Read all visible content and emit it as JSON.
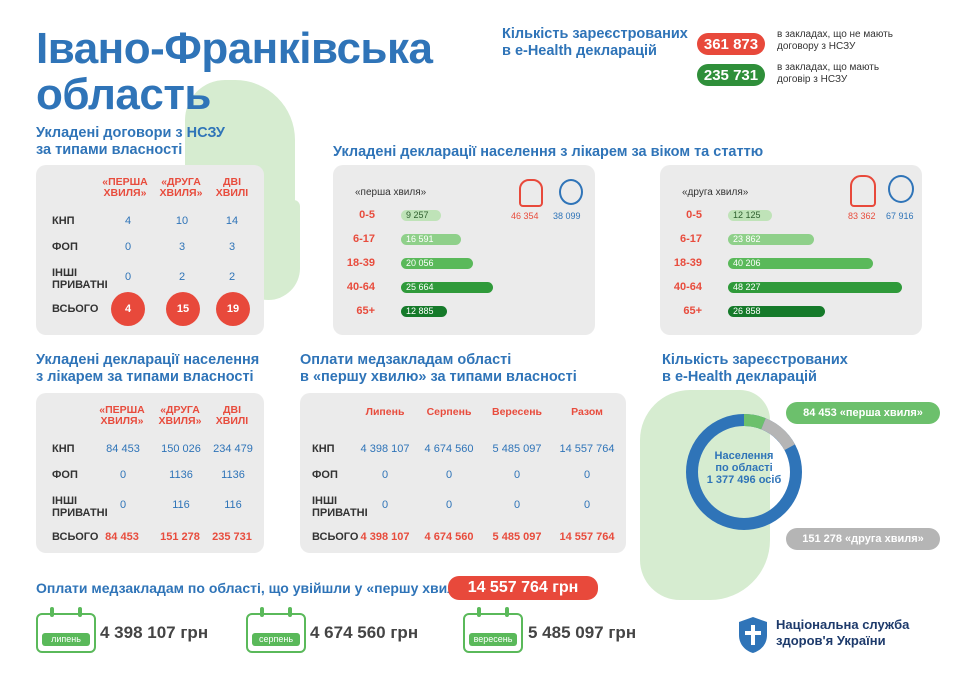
{
  "region_title": [
    "Івано-Франківська",
    "область"
  ],
  "registered_top": {
    "heading": [
      "Кількість зареєстрованих",
      "в e-Health декларацій"
    ],
    "no_contract": {
      "value": "361 873",
      "label": [
        "в закладах, що не мають",
        "договору з НСЗУ"
      ]
    },
    "with_contract": {
      "value": "235 731",
      "label": [
        "в закладах, що мають",
        "договір з НСЗУ"
      ]
    }
  },
  "contracts": {
    "heading": [
      "Укладені договори з НСЗУ",
      "за типами власності"
    ],
    "cols": [
      "«ПЕРША ХВИЛЯ»",
      "«ДРУГА ХВИЛЯ»",
      "ДВІ ХВИЛІ"
    ],
    "rows": [
      {
        "label": "КНП",
        "v": [
          "4",
          "10",
          "14"
        ]
      },
      {
        "label": "ФОП",
        "v": [
          "0",
          "3",
          "3"
        ]
      },
      {
        "label": "ІНШІ ПРИВАТНІ",
        "v": [
          "0",
          "2",
          "2"
        ]
      }
    ],
    "total": {
      "label": "ВСЬОГО",
      "v": [
        "4",
        "15",
        "19"
      ]
    }
  },
  "age": {
    "heading": "Укладені декларації населення з лікарем за віком та статтю",
    "wave1": {
      "label": "«перша хвиля»",
      "female": "46 354",
      "male": "38 099",
      "rows": [
        {
          "age": "0-5",
          "value": "9 257",
          "num": 9257
        },
        {
          "age": "6-17",
          "value": "16 591",
          "num": 16591
        },
        {
          "age": "18-39",
          "value": "20 056",
          "num": 20056
        },
        {
          "age": "40-64",
          "value": "25 664",
          "num": 25664
        },
        {
          "age": "65+",
          "value": "12 885",
          "num": 12885
        }
      ]
    },
    "wave2": {
      "label": "«друга хвиля»",
      "female": "83 362",
      "male": "67 916",
      "rows": [
        {
          "age": "0-5",
          "value": "12 125",
          "num": 12125
        },
        {
          "age": "6-17",
          "value": "23 862",
          "num": 23862
        },
        {
          "age": "18-39",
          "value": "40 206",
          "num": 40206
        },
        {
          "age": "40-64",
          "value": "48 227",
          "num": 48227
        },
        {
          "age": "65+",
          "value": "26 858",
          "num": 26858
        }
      ]
    },
    "bar_colors": [
      "#bfe3b8",
      "#8fd08a",
      "#5ab95a",
      "#2f9a3a",
      "#157a2a"
    ]
  },
  "declarations": {
    "heading": [
      "Укладені декларації населення",
      "з лікарем за типами власності"
    ],
    "cols": [
      "«ПЕРША ХВИЛЯ»",
      "«ДРУГА ХВИЛЯ»",
      "ДВІ ХВИЛІ"
    ],
    "rows": [
      {
        "label": "КНП",
        "v": [
          "84 453",
          "150 026",
          "234 479"
        ]
      },
      {
        "label": "ФОП",
        "v": [
          "0",
          "1136",
          "1136"
        ]
      },
      {
        "label": "ІНШІ ПРИВАТНІ",
        "v": [
          "0",
          "116",
          "116"
        ]
      }
    ],
    "total": {
      "label": "ВСЬОГО",
      "v": [
        "84 453",
        "151 278",
        "235 731"
      ]
    }
  },
  "payments": {
    "heading": [
      "Оплати медзакладам області",
      "в «першу хвилю» за типами власності"
    ],
    "cols": [
      "Липень",
      "Серпень",
      "Вересень",
      "Разом"
    ],
    "rows": [
      {
        "label": "КНП",
        "v": [
          "4 398 107",
          "4 674 560",
          "5 485 097",
          "14 557 764"
        ]
      },
      {
        "label": "ФОП",
        "v": [
          "0",
          "0",
          "0",
          "0"
        ]
      },
      {
        "label": "ІНШІ ПРИВАТНІ",
        "v": [
          "0",
          "0",
          "0",
          "0"
        ]
      }
    ],
    "total": {
      "label": "ВСЬОГО",
      "v": [
        "4 398 107",
        "4 674 560",
        "5 485 097",
        "14 557 764"
      ]
    }
  },
  "registered_donut": {
    "heading": [
      "Кількість зареєстрованих",
      "в e-Health декларацій"
    ],
    "center": [
      "Населення",
      "по області",
      "1 377 496 осіб"
    ],
    "wave1": "84 453 «перша хвиля»",
    "wave2": "151 278 «друга хвиля»",
    "wave1_share": 0.061,
    "wave2_share": 0.11
  },
  "monthly": {
    "heading": "Оплати медзакладам по області, що увійшли у «першу хвилю»",
    "total": "14 557 764 грн",
    "months": [
      {
        "label": "липень",
        "amount": "4 398 107 грн"
      },
      {
        "label": "серпень",
        "amount": "4 674 560 грн"
      },
      {
        "label": "вересень",
        "amount": "5 485 097 грн"
      }
    ]
  },
  "nszu": {
    "name": [
      "Національна служба",
      "здоров'я України"
    ]
  },
  "colors": {
    "blue": "#2f74b8",
    "red": "#e8493b",
    "green": "#2f8f3a",
    "lightgreen": "#5ab95a",
    "gray": "#b5b5b5"
  }
}
